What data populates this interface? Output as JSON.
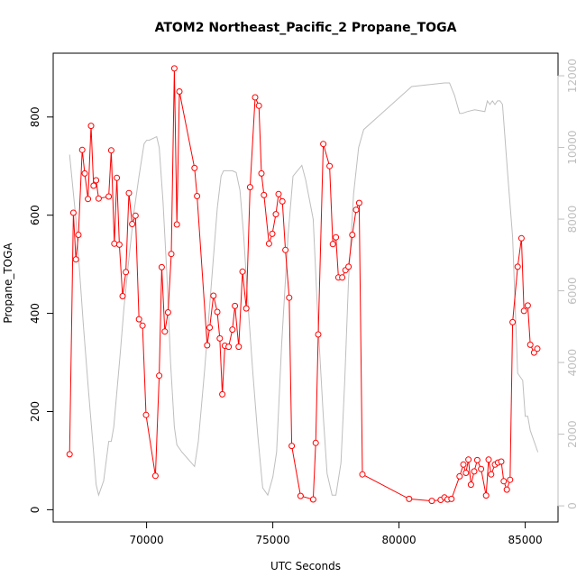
{
  "chart_data": {
    "type": "line",
    "title": "ATOM2 Northeast_Pacific_2 Propane_TOGA",
    "xlabel": "UTC Seconds",
    "ylabel": "Propane_TOGA",
    "xlim": [
      66300,
      86300
    ],
    "ylim": [
      -25,
      930
    ],
    "y2lim": [
      -450,
      12630
    ],
    "x_ticks": [
      70000,
      75000,
      80000,
      85000
    ],
    "y_ticks": [
      0,
      200,
      400,
      600,
      800
    ],
    "y2_ticks": [
      0,
      2000,
      4000,
      6000,
      8000,
      10000,
      12000
    ],
    "colors": {
      "propane": "#ff0000",
      "altitude": "#bebebe",
      "axis": "#000000"
    },
    "series": [
      {
        "name": "Propane_TOGA",
        "axis": "left",
        "style": "line+points",
        "x": [
          66950,
          67100,
          67200,
          67300,
          67450,
          67550,
          67680,
          67800,
          67900,
          68000,
          68100,
          68500,
          68600,
          68720,
          68820,
          68920,
          69050,
          69180,
          69300,
          69430,
          69560,
          69700,
          69840,
          69980,
          70350,
          70500,
          70600,
          70720,
          70850,
          70980,
          71100,
          71200,
          71300,
          71900,
          72000,
          72400,
          72500,
          72650,
          72800,
          72900,
          73000,
          73100,
          73250,
          73400,
          73500,
          73650,
          73800,
          73950,
          74100,
          74300,
          74450,
          74550,
          74650,
          74850,
          74980,
          75120,
          75230,
          75380,
          75500,
          75650,
          75750,
          76100,
          76600,
          76700,
          76800,
          77000,
          77250,
          77380,
          77500,
          77600,
          77750,
          77880,
          78000,
          78150,
          78300,
          78420,
          78550,
          80400,
          81300,
          81650,
          81800,
          81920,
          82080,
          82400,
          82550,
          82650,
          82750,
          82850,
          82980,
          83100,
          83250,
          83450,
          83550,
          83650,
          83800,
          83920,
          84050,
          84150,
          84270,
          84400,
          84500,
          84700,
          84850,
          84950,
          85100,
          85200,
          85350,
          85480
        ],
        "y": [
          113,
          605,
          510,
          560,
          733,
          685,
          633,
          782,
          660,
          671,
          634,
          638,
          732,
          542,
          676,
          540,
          435,
          484,
          645,
          582,
          599,
          388,
          375,
          193,
          69,
          273,
          494,
          363,
          402,
          521,
          899,
          581,
          852,
          696,
          639,
          335,
          371,
          436,
          403,
          349,
          235,
          334,
          332,
          367,
          415,
          332,
          485,
          410,
          657,
          840,
          823,
          685,
          641,
          542,
          562,
          602,
          643,
          628,
          529,
          432,
          130,
          28,
          21,
          136,
          357,
          745,
          700,
          541,
          555,
          473,
          473,
          488,
          495,
          560,
          611,
          625,
          72,
          22,
          18,
          20,
          25,
          21,
          22,
          68,
          92,
          75,
          102,
          51,
          78,
          101,
          83,
          29,
          102,
          72,
          92,
          96,
          98,
          58,
          41,
          61,
          382,
          495,
          553,
          405,
          416,
          336,
          320,
          328
        ]
      },
      {
        "name": "Altitude",
        "axis": "right",
        "style": "line",
        "x": [
          66950,
          67200,
          67500,
          67700,
          67900,
          68000,
          68100,
          68300,
          68500,
          68600,
          68700,
          68800,
          68950,
          69100,
          69300,
          69500,
          69700,
          69900,
          70000,
          70100,
          70400,
          70500,
          70650,
          70800,
          70950,
          71100,
          71200,
          71400,
          71650,
          71900,
          72050,
          72300,
          72600,
          72800,
          72950,
          73050,
          73200,
          73400,
          73550,
          73700,
          73850,
          74000,
          74200,
          74400,
          74600,
          74800,
          75000,
          75150,
          75350,
          75600,
          75800,
          76150,
          76300,
          76600,
          76800,
          77000,
          77150,
          77350,
          77500,
          77700,
          77850,
          78000,
          78200,
          78400,
          78600,
          80500,
          81800,
          82000,
          82200,
          82400,
          82500,
          82700,
          83000,
          83400,
          83500,
          83600,
          83700,
          83800,
          83900,
          84000,
          84100,
          84300,
          84500,
          84700,
          84900,
          85000,
          85100,
          85200,
          85400,
          85500
        ],
        "y": [
          9800,
          8000,
          5000,
          3200,
          1500,
          600,
          300,
          700,
          1800,
          1800,
          2200,
          3000,
          4200,
          5500,
          6900,
          8200,
          9200,
          10100,
          10200,
          10200,
          10300,
          10000,
          8500,
          6500,
          4000,
          2200,
          1700,
          1500,
          1300,
          1100,
          1800,
          3800,
          6500,
          8300,
          9200,
          9350,
          9350,
          9350,
          9300,
          8800,
          7500,
          5800,
          3800,
          2000,
          500,
          300,
          800,
          1500,
          4500,
          7500,
          9200,
          9500,
          9100,
          8000,
          5000,
          2500,
          900,
          300,
          300,
          1200,
          3500,
          6300,
          8700,
          10000,
          10500,
          11700,
          11800,
          11800,
          11450,
          10950,
          10950,
          11000,
          11050,
          11000,
          11300,
          11200,
          11300,
          11200,
          11300,
          11300,
          11200,
          9300,
          7500,
          3700,
          3500,
          2500,
          2500,
          2100,
          1700,
          1500
        ]
      }
    ]
  }
}
